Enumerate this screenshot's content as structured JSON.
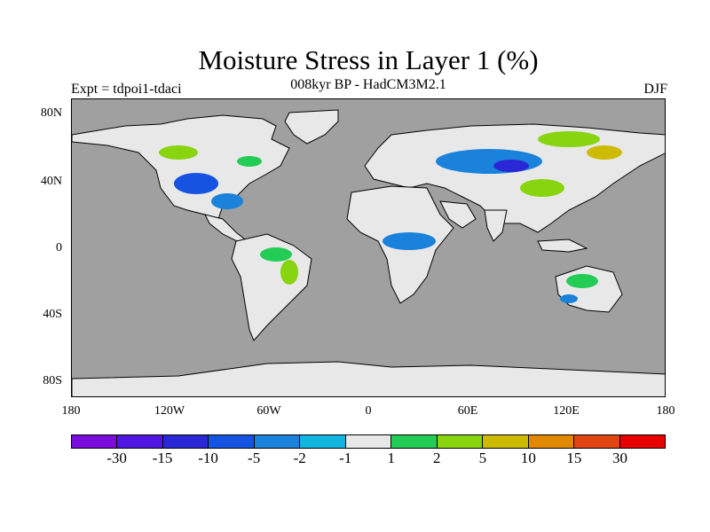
{
  "title": "Moisture Stress in Layer 1 (%)",
  "subtitle": "008kyr BP - HadCM3M2.1",
  "experiment": "Expt = tdpoi1-tdaci",
  "season": "DJF",
  "lat_ticks": [
    "80N",
    "40N",
    "0",
    "40S",
    "80S"
  ],
  "lon_ticks": [
    "180",
    "120W",
    "60W",
    "0",
    "60E",
    "120E",
    "180"
  ],
  "colorbar": {
    "colors": [
      "#7a0cdc",
      "#4f17e0",
      "#2a28d6",
      "#1553e0",
      "#1a82da",
      "#12b4e0",
      "#e8e8e8",
      "#22cc55",
      "#88d40f",
      "#ccbb00",
      "#e08800",
      "#e04410",
      "#e80000"
    ],
    "labels": [
      "-30",
      "-15",
      "-10",
      "-5",
      "-2",
      "-1",
      "1",
      "2",
      "5",
      "10",
      "15",
      "30"
    ]
  },
  "map": {
    "ocean_color": "#a0a0a0",
    "land_color": "#e8e8e8"
  }
}
